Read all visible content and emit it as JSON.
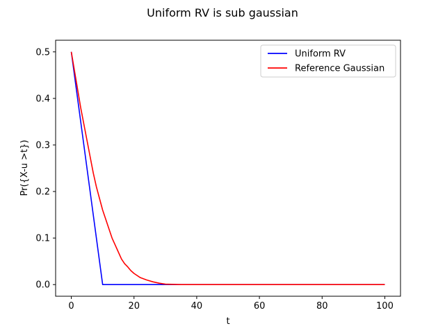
{
  "chart_data": {
    "type": "line",
    "title": "Uniform RV is sub gaussian",
    "xlabel": "t",
    "ylabel": "Pr({X-u >t})",
    "xlim": [
      -5,
      105
    ],
    "ylim": [
      -0.025,
      0.525
    ],
    "xticks": [
      0,
      20,
      40,
      60,
      80,
      100
    ],
    "yticks": [
      0.0,
      0.1,
      0.2,
      0.3,
      0.4,
      0.5
    ],
    "xtick_labels": [
      "0",
      "20",
      "40",
      "60",
      "80",
      "100"
    ],
    "ytick_labels": [
      "0.0",
      "0.1",
      "0.2",
      "0.3",
      "0.4",
      "0.5"
    ],
    "grid": false,
    "legend_position": "top-right",
    "series": [
      {
        "name": "Uniform RV",
        "color": "#0000ff",
        "x": [
          0,
          10,
          11,
          30,
          50,
          100
        ],
        "y": [
          0.5,
          0.0,
          0.0,
          0.0,
          0.0,
          0.0
        ]
      },
      {
        "name": "Reference Gaussian",
        "color": "#ff0000",
        "x": [
          0,
          1,
          2,
          3,
          4,
          5,
          6,
          7,
          8,
          9,
          10,
          11,
          12,
          13,
          14,
          15,
          16,
          17,
          18,
          19,
          20,
          22,
          24,
          26,
          28,
          30,
          35,
          40,
          50,
          60,
          70,
          80,
          90,
          100
        ],
        "y": [
          0.5,
          0.46,
          0.42,
          0.38,
          0.345,
          0.31,
          0.275,
          0.24,
          0.21,
          0.185,
          0.16,
          0.14,
          0.12,
          0.1,
          0.085,
          0.07,
          0.055,
          0.045,
          0.038,
          0.03,
          0.024,
          0.015,
          0.01,
          0.006,
          0.003,
          0.001,
          0.0,
          0.0,
          0.0,
          0.0,
          0.0,
          0.0,
          0.0,
          0.0
        ]
      }
    ]
  }
}
